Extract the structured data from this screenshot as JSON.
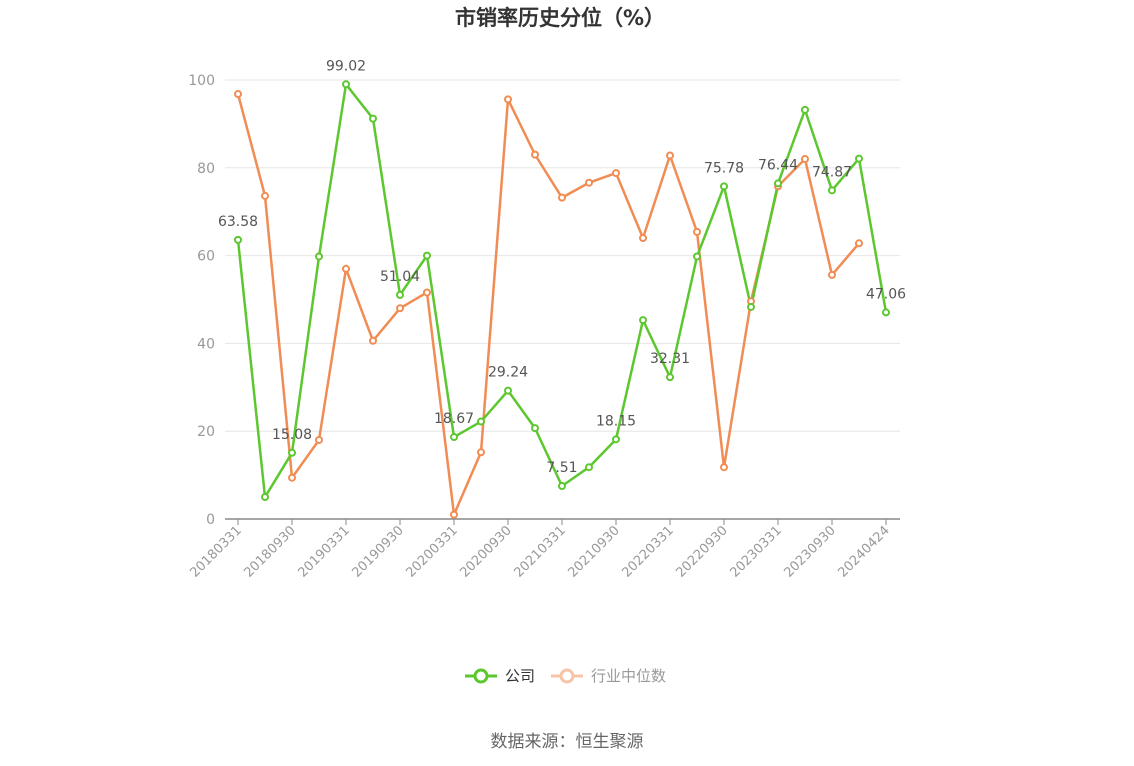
{
  "chart_data": {
    "type": "line",
    "title": "市销率历史分位（%）",
    "ylim": [
      0,
      100
    ],
    "yticks": [
      0,
      20,
      40,
      60,
      80,
      100
    ],
    "x": [
      "20180331",
      "20180630",
      "20180930",
      "20181231",
      "20190331",
      "20190630",
      "20190930",
      "20191231",
      "20200331",
      "20200630",
      "20200930",
      "20201231",
      "20210331",
      "20210630",
      "20210930",
      "20211231",
      "20220331",
      "20220630",
      "20220930",
      "20221231",
      "20230331",
      "20230630",
      "20230930",
      "20231231",
      "20240424"
    ],
    "xtick_labels": [
      "20180331",
      "20180930",
      "20190331",
      "20190930",
      "20200331",
      "20200930",
      "20210331",
      "20210930",
      "20220331",
      "20220930",
      "20230331",
      "20230930",
      "20240424"
    ],
    "grid": true,
    "legend_position": "bottom",
    "series": [
      {
        "name": "公司",
        "color": "#5cc72e",
        "values": [
          63.58,
          5.0,
          15.08,
          59.8,
          99.02,
          91.2,
          51.04,
          60.0,
          18.67,
          22.2,
          29.24,
          20.7,
          7.51,
          11.8,
          18.15,
          45.3,
          32.31,
          59.8,
          75.78,
          48.3,
          76.44,
          93.2,
          74.87,
          82.1,
          47.06
        ],
        "labels": {
          "0": "63.58",
          "2": "15.08",
          "4": "99.02",
          "6": "51.04",
          "8": "18.67",
          "10": "29.24",
          "12": "7.51",
          "14": "18.15",
          "16": "32.31",
          "18": "75.78",
          "20": "76.44",
          "22": "74.87",
          "24": "47.06"
        }
      },
      {
        "name": "行业中位数",
        "color": "#f08c54",
        "values": [
          96.8,
          73.6,
          9.4,
          18.0,
          57.0,
          40.6,
          48.0,
          51.6,
          1.0,
          15.2,
          95.6,
          83.0,
          73.2,
          76.6,
          78.8,
          64.0,
          82.8,
          65.4,
          11.8,
          49.6,
          75.8,
          82.0,
          55.6,
          62.8,
          null
        ]
      }
    ],
    "source_text": "数据来源：恒生聚源"
  }
}
